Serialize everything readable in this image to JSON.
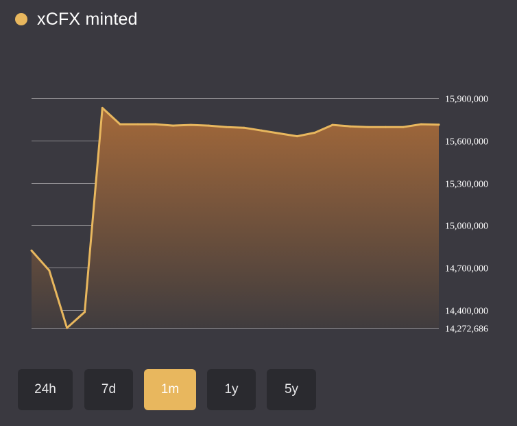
{
  "legend": {
    "label": "xCFX minted",
    "color": "#e8b75e"
  },
  "range_buttons": [
    {
      "label": "24h",
      "active": false
    },
    {
      "label": "7d",
      "active": false
    },
    {
      "label": "1m",
      "active": true
    },
    {
      "label": "1y",
      "active": false
    },
    {
      "label": "5y",
      "active": false
    }
  ],
  "chart_data": {
    "type": "area",
    "title": "",
    "xlabel": "",
    "ylabel": "",
    "series": [
      {
        "name": "xCFX minted",
        "color": "#e8b75e",
        "values": [
          14820000,
          14680000,
          14272686,
          14385000,
          15830000,
          15715000,
          15715000,
          15715000,
          15705000,
          15710000,
          15705000,
          15695000,
          15690000,
          15670000,
          15650000,
          15630000,
          15655000,
          15710000,
          15700000,
          15695000,
          15695000,
          15695000,
          15715000,
          15712000
        ]
      }
    ],
    "ylim": [
      14272686,
      15900000
    ],
    "y_ticks": [
      {
        "value": 15900000,
        "label": "15,900,000"
      },
      {
        "value": 15600000,
        "label": "15,600,000"
      },
      {
        "value": 15300000,
        "label": "15,300,000"
      },
      {
        "value": 15000000,
        "label": "15,000,000"
      },
      {
        "value": 14700000,
        "label": "14,700,000"
      },
      {
        "value": 14400000,
        "label": "14,400,000"
      },
      {
        "value": 14272686,
        "label": "14,272,686"
      }
    ],
    "grid": true,
    "y_axis_position": "right",
    "colors": {
      "line": "#e8b75e",
      "fill_top": "#a4693a",
      "fill_bottom": "#403c3e",
      "grid": "#8e8c90"
    }
  }
}
